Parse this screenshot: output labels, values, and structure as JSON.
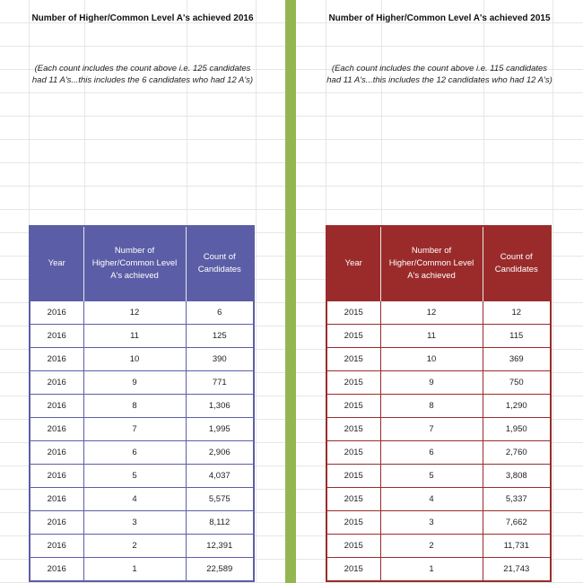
{
  "left": {
    "title": "Number of Higher/Common Level A's achieved 2016",
    "note": "(Each count includes the count above i.e. 125 candidates had 11 A's...this includes the 6 candidates who had 12 A's)",
    "headers": [
      "Year",
      "Number of Higher/Common Level A's achieved",
      "Count of Candidates"
    ],
    "header_color": "#5b5ea6",
    "rows": [
      [
        "2016",
        "12",
        "6"
      ],
      [
        "2016",
        "11",
        "125"
      ],
      [
        "2016",
        "10",
        "390"
      ],
      [
        "2016",
        "9",
        "771"
      ],
      [
        "2016",
        "8",
        "1,306"
      ],
      [
        "2016",
        "7",
        "1,995"
      ],
      [
        "2016",
        "6",
        "2,906"
      ],
      [
        "2016",
        "5",
        "4,037"
      ],
      [
        "2016",
        "4",
        "5,575"
      ],
      [
        "2016",
        "3",
        "8,112"
      ],
      [
        "2016",
        "2",
        "12,391"
      ],
      [
        "2016",
        "1",
        "22,589"
      ]
    ]
  },
  "right": {
    "title": "Number of Higher/Common Level A's achieved 2015",
    "note": "(Each count includes the count above i.e. 115 candidates had 11 A's...this includes the 12 candidates who had 12 A's)",
    "headers": [
      "Year",
      "Number of Higher/Common Level A's achieved",
      "Count of Candidates"
    ],
    "header_color": "#9b2b2b",
    "rows": [
      [
        "2015",
        "12",
        "12"
      ],
      [
        "2015",
        "11",
        "115"
      ],
      [
        "2015",
        "10",
        "369"
      ],
      [
        "2015",
        "9",
        "750"
      ],
      [
        "2015",
        "8",
        "1,290"
      ],
      [
        "2015",
        "7",
        "1,950"
      ],
      [
        "2015",
        "6",
        "2,760"
      ],
      [
        "2015",
        "5",
        "3,808"
      ],
      [
        "2015",
        "4",
        "5,337"
      ],
      [
        "2015",
        "3",
        "7,662"
      ],
      [
        "2015",
        "2",
        "11,731"
      ],
      [
        "2015",
        "1",
        "21,743"
      ]
    ]
  },
  "divider_color": "#94b651"
}
